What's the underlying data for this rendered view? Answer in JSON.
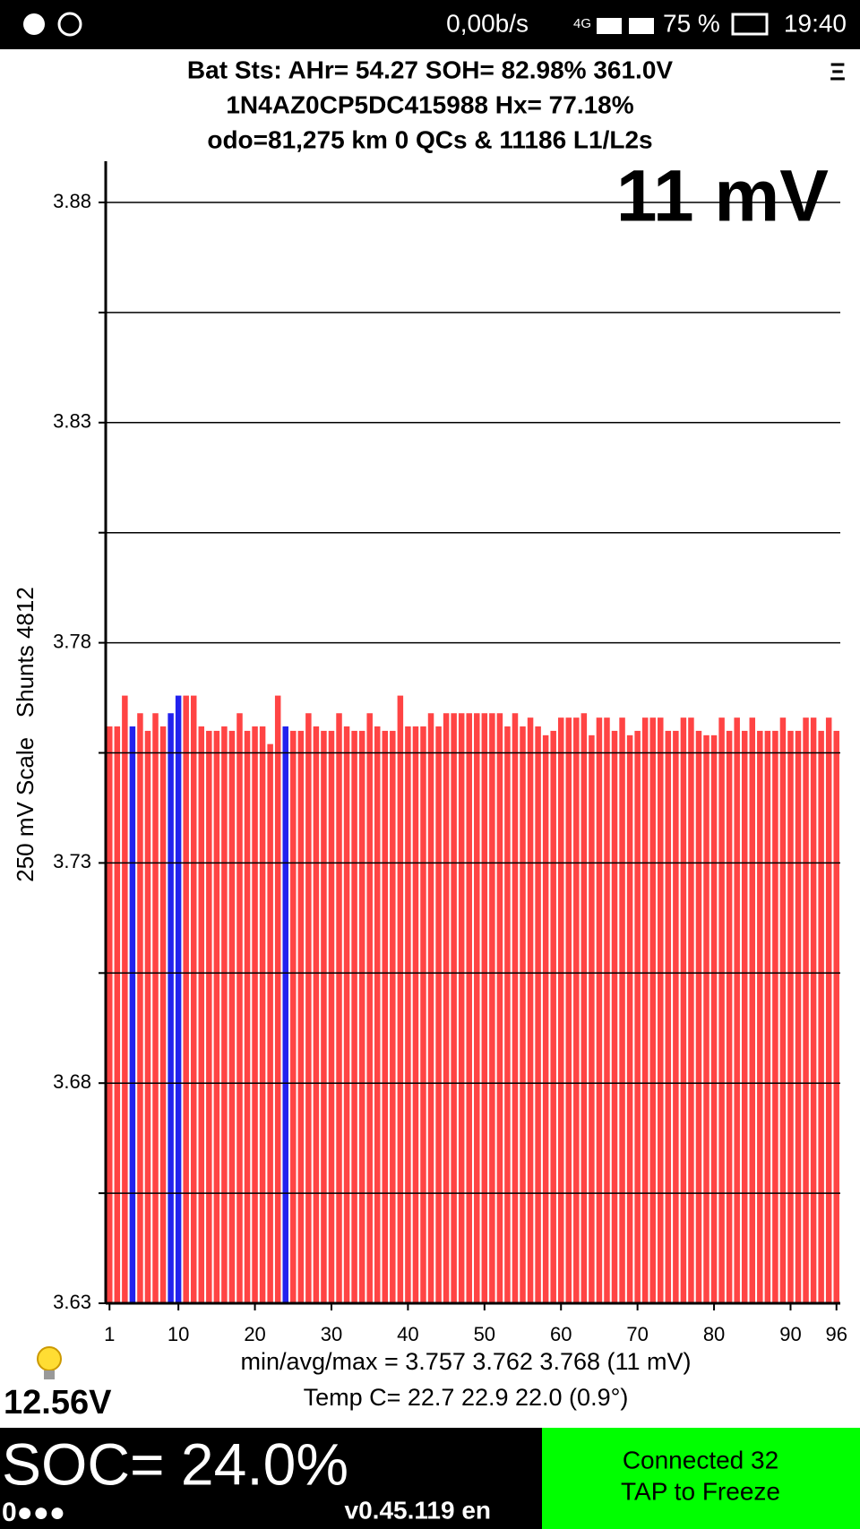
{
  "status_bar": {
    "network_speed": "0,00b/s",
    "network": "4G",
    "battery": "75 %",
    "time": "19:40"
  },
  "header": {
    "line1": "Bat Sts:  AHr= 54.27  SOH= 82.98%   361.0V",
    "line2": "1N4AZ0CP5DC415988   Hx= 77.18%",
    "line3": "odo=81,275 km 0 QCs & 11186 L1/L2s",
    "menu": "Ξ"
  },
  "chart_data": {
    "type": "bar",
    "overlay": "11 mV",
    "ylabel": "250 mV Scale   Shunts 4812",
    "x": [
      1,
      2,
      3,
      4,
      5,
      6,
      7,
      8,
      9,
      10,
      11,
      12,
      13,
      14,
      15,
      16,
      17,
      18,
      19,
      20,
      21,
      22,
      23,
      24,
      25,
      26,
      27,
      28,
      29,
      30,
      31,
      32,
      33,
      34,
      35,
      36,
      37,
      38,
      39,
      40,
      41,
      42,
      43,
      44,
      45,
      46,
      47,
      48,
      49,
      50,
      51,
      52,
      53,
      54,
      55,
      56,
      57,
      58,
      59,
      60,
      61,
      62,
      63,
      64,
      65,
      66,
      67,
      68,
      69,
      70,
      71,
      72,
      73,
      74,
      75,
      76,
      77,
      78,
      79,
      80,
      81,
      82,
      83,
      84,
      85,
      86,
      87,
      88,
      89,
      90,
      91,
      92,
      93,
      94,
      95,
      96
    ],
    "values": [
      3.761,
      3.761,
      3.768,
      3.761,
      3.764,
      3.76,
      3.764,
      3.761,
      3.764,
      3.768,
      3.768,
      3.768,
      3.761,
      3.76,
      3.76,
      3.761,
      3.76,
      3.764,
      3.76,
      3.761,
      3.761,
      3.757,
      3.768,
      3.761,
      3.76,
      3.76,
      3.764,
      3.761,
      3.76,
      3.76,
      3.764,
      3.761,
      3.76,
      3.76,
      3.764,
      3.761,
      3.76,
      3.76,
      3.768,
      3.761,
      3.761,
      3.761,
      3.764,
      3.761,
      3.764,
      3.764,
      3.764,
      3.764,
      3.764,
      3.764,
      3.764,
      3.764,
      3.761,
      3.764,
      3.761,
      3.763,
      3.761,
      3.759,
      3.76,
      3.763,
      3.763,
      3.763,
      3.764,
      3.759,
      3.763,
      3.763,
      3.76,
      3.763,
      3.759,
      3.76,
      3.763,
      3.763,
      3.763,
      3.76,
      3.76,
      3.763,
      3.763,
      3.76,
      3.759,
      3.759,
      3.763,
      3.76,
      3.763,
      3.76,
      3.763,
      3.76,
      3.76,
      3.76,
      3.763,
      3.76,
      3.76,
      3.763,
      3.763,
      3.76,
      3.763,
      3.76
    ],
    "colors": [
      "#f44",
      "#f44",
      "#f44",
      "#22e",
      "#f44",
      "#f44",
      "#f44",
      "#f44",
      "#22e",
      "#22e",
      "#f44",
      "#f44",
      "#f44",
      "#f44",
      "#f44",
      "#f44",
      "#f44",
      "#f44",
      "#f44",
      "#f44",
      "#f44",
      "#f44",
      "#f44",
      "#22e",
      "#f44",
      "#f44",
      "#f44",
      "#f44",
      "#f44",
      "#f44",
      "#f44",
      "#f44",
      "#f44",
      "#f44",
      "#f44",
      "#f44",
      "#f44",
      "#f44",
      "#f44",
      "#f44",
      "#f44",
      "#f44",
      "#f44",
      "#f44",
      "#f44",
      "#f44",
      "#f44",
      "#f44",
      "#f44",
      "#f44",
      "#f44",
      "#f44",
      "#f44",
      "#f44",
      "#f44",
      "#f44",
      "#f44",
      "#f44",
      "#f44",
      "#f44",
      "#f44",
      "#f44",
      "#f44",
      "#f44",
      "#f44",
      "#f44",
      "#f44",
      "#f44",
      "#f44",
      "#f44",
      "#f44",
      "#f44",
      "#f44",
      "#f44",
      "#f44",
      "#f44",
      "#f44",
      "#f44",
      "#f44",
      "#f44",
      "#f44",
      "#f44",
      "#f44",
      "#f44",
      "#f44",
      "#f44",
      "#f44",
      "#f44",
      "#f44",
      "#f44",
      "#f44",
      "#f44",
      "#f44",
      "#f44",
      "#f44",
      "#f44"
    ],
    "xlim": [
      0.5,
      96.5
    ],
    "xticks": [
      1,
      10,
      20,
      30,
      40,
      50,
      60,
      70,
      80,
      90,
      96
    ],
    "ylim": [
      3.63,
      3.88
    ],
    "yticks": [
      3.63,
      3.68,
      3.73,
      3.78,
      3.83,
      3.88
    ],
    "minor_yticks": [
      3.655,
      3.705,
      3.755,
      3.805,
      3.855
    ],
    "grid": true
  },
  "footer": {
    "stats_line1": "min/avg/max = 3.757 3.762 3.768  (11 mV)",
    "stats_line2": "Temp C= 22.7  22.9  22.0  (0.9°)",
    "aux_voltage": "12.56V",
    "soc": "SOC= 24.0%",
    "dots": "0●●●",
    "version": "v0.45.119 en",
    "status_line1": "Connected 32",
    "status_line2": "TAP to Freeze"
  }
}
